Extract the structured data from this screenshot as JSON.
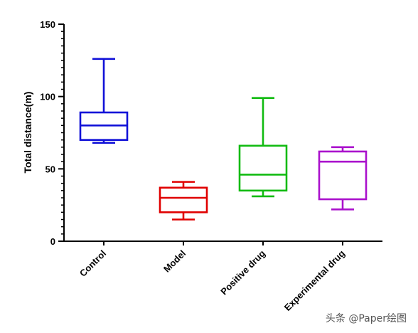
{
  "chart_data": {
    "type": "box",
    "ylabel": "Total distance(m)",
    "ylim": [
      0,
      150
    ],
    "yticks": [
      0,
      50,
      100,
      150
    ],
    "yminor_step": 5,
    "categories": [
      "Control",
      "Model",
      "Positive drug",
      "Experimental drug"
    ],
    "boxes": [
      {
        "name": "Control",
        "min": 68,
        "q1": 70,
        "median": 80,
        "q3": 89,
        "max": 126,
        "color": "#1111d8"
      },
      {
        "name": "Model",
        "min": 15,
        "q1": 20,
        "median": 30,
        "q3": 37,
        "max": 41,
        "color": "#e00000"
      },
      {
        "name": "Positive drug",
        "min": 31,
        "q1": 35,
        "median": 46,
        "q3": 66,
        "max": 99,
        "color": "#11bb11"
      },
      {
        "name": "Experimental drug",
        "min": 22,
        "q1": 29,
        "median": 55,
        "q3": 62,
        "max": 65,
        "color": "#aa11cc"
      }
    ]
  },
  "watermark": {
    "text": "头条 @Paper绘图"
  }
}
